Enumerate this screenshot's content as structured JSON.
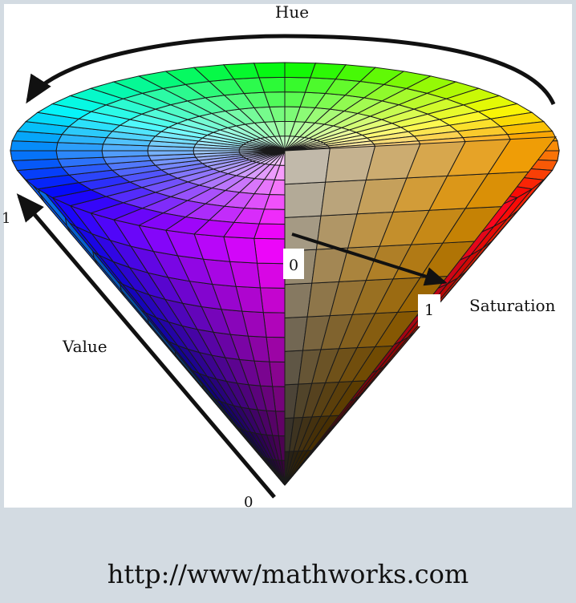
{
  "diagram": {
    "hue_label": "Hue",
    "value_label": "Value",
    "saturation_label": "Saturation",
    "value_min": "0",
    "value_max": "1",
    "saturation_min": "0",
    "saturation_max": "1"
  },
  "caption": {
    "source_url": "http://www/mathworks.com"
  }
}
